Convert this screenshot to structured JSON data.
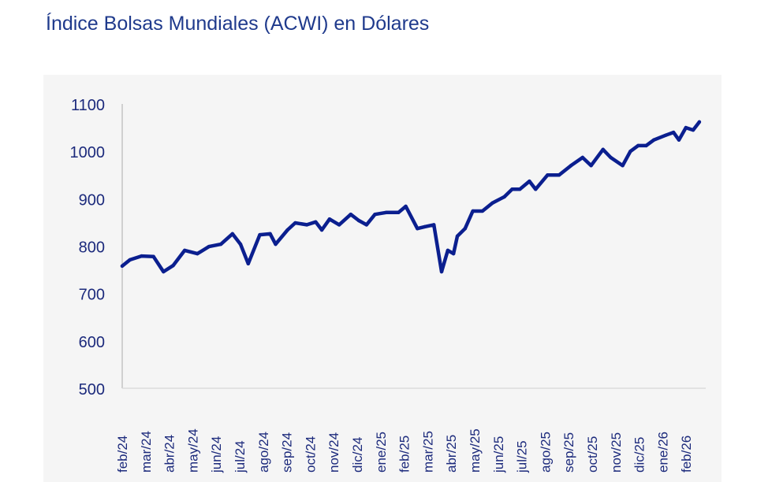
{
  "chart_data": {
    "type": "line",
    "title": "Índice Bolsas Mundiales (ACWI) en Dólares",
    "xlabel": "",
    "ylabel": "",
    "ylim": [
      500,
      1100
    ],
    "yticks": [
      "500",
      "600",
      "700",
      "800",
      "900",
      "1000",
      "1100"
    ],
    "xticks": [
      "feb/24",
      "mar/24",
      "abr/24",
      "may/24",
      "jun/24",
      "jul/24",
      "ago/24",
      "sep/24",
      "oct/24",
      "nov/24",
      "dic/24",
      "ene/25",
      "feb/25",
      "mar/25",
      "abr/25",
      "may/25",
      "jun/25",
      "jul/25",
      "ago/25",
      "sep/25",
      "oct/25",
      "nov/25",
      "dic/25",
      "ene/26",
      "feb/26"
    ],
    "grid": false,
    "line_color": "#0b1f8f",
    "series": [
      {
        "x": [
          "2024-02-01",
          "2024-02-11",
          "2024-02-26",
          "2024-03-11",
          "2024-03-24",
          "2024-04-06",
          "2024-04-21",
          "2024-05-07",
          "2024-05-22",
          "2024-06-07",
          "2024-06-22",
          "2024-07-02",
          "2024-07-12",
          "2024-07-27",
          "2024-08-10",
          "2024-08-17",
          "2024-09-02",
          "2024-09-12",
          "2024-09-27",
          "2024-10-08",
          "2024-10-16",
          "2024-10-26",
          "2024-11-08",
          "2024-11-23",
          "2024-12-03",
          "2024-12-13",
          "2024-12-24",
          "2025-01-08",
          "2025-01-24",
          "2025-02-03",
          "2025-02-18",
          "2025-02-28",
          "2025-03-09",
          "2025-03-19",
          "2025-03-27",
          "2025-04-04",
          "2025-04-09",
          "2025-04-19",
          "2025-04-29",
          "2025-05-11",
          "2025-05-24",
          "2025-06-09",
          "2025-06-19",
          "2025-06-29",
          "2025-07-11",
          "2025-07-19",
          "2025-08-04",
          "2025-08-19",
          "2025-09-04",
          "2025-09-19",
          "2025-09-30",
          "2025-10-15",
          "2025-10-25",
          "2025-11-10",
          "2025-11-20",
          "2025-11-30",
          "2025-12-10",
          "2025-12-20",
          "2026-01-05",
          "2026-01-15",
          "2026-01-22",
          "2026-01-31",
          "2026-02-10",
          "2026-02-18"
        ],
        "y": [
          758,
          771,
          779,
          778,
          746,
          759,
          791,
          784,
          799,
          804,
          826,
          804,
          763,
          824,
          826,
          804,
          834,
          849,
          845,
          851,
          834,
          857,
          845,
          867,
          854,
          845,
          867,
          871,
          871,
          884,
          837,
          841,
          845,
          746,
          791,
          784,
          821,
          837,
          874,
          874,
          891,
          904,
          920,
          920,
          937,
          920,
          950,
          950,
          970,
          987,
          970,
          1004,
          987,
          970,
          1000,
          1012,
          1012,
          1024,
          1034,
          1040,
          1024,
          1050,
          1045,
          1062
        ]
      }
    ]
  }
}
